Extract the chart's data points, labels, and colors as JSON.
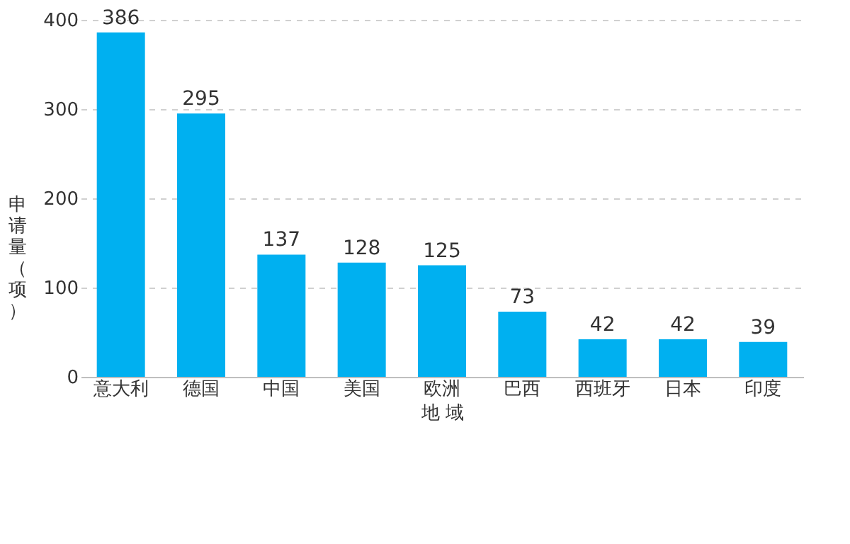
{
  "chart_data": {
    "type": "bar",
    "xlabel": "地 域",
    "ylabel": "申请量（项）",
    "categories": [
      "意大利",
      "德国",
      "中国",
      "美国",
      "欧洲",
      "巴西",
      "西班牙",
      "日本",
      "印度"
    ],
    "values": [
      386,
      295,
      137,
      128,
      125,
      73,
      42,
      42,
      39
    ],
    "color": "#00b0f0",
    "ylim": [
      0,
      400
    ],
    "yticks": [
      0,
      100,
      200,
      300,
      400
    ],
    "grid": "y",
    "data_labels": true
  }
}
